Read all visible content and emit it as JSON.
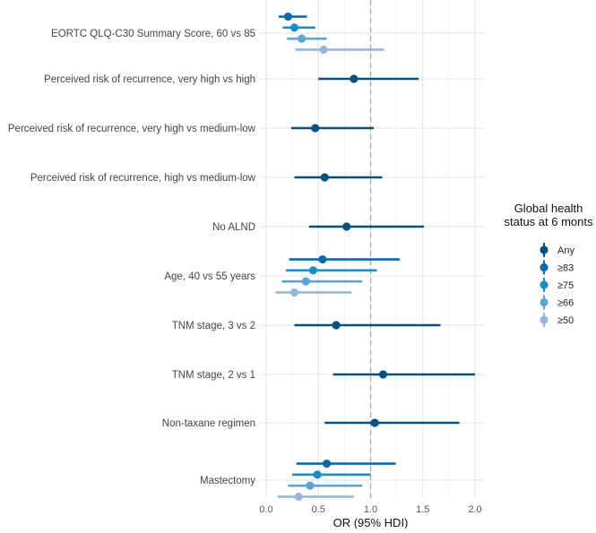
{
  "chart_data": {
    "type": "forest",
    "xlabel": "OR (95% HDI)",
    "xlim": [
      0,
      2.05
    ],
    "xticks": [
      "0.0",
      "0.5",
      "1.0",
      "1.5",
      "2.0"
    ],
    "xtick_values": [
      0,
      0.5,
      1,
      1.5,
      2
    ],
    "reference_line": 1.0,
    "grid": true,
    "legend": {
      "title_lines": [
        "Global health",
        "status at 6 monts"
      ],
      "placement": "right",
      "entries": [
        {
          "name": "Any",
          "color": "#08517f"
        },
        {
          "name": "≥83",
          "color": "#0a6aa8"
        },
        {
          "name": "≥75",
          "color": "#1b8cc6"
        },
        {
          "name": "≥66",
          "color": "#5da4d1"
        },
        {
          "name": "≥50",
          "color": "#96b7da"
        }
      ]
    },
    "rows": [
      {
        "label": "EORTC QLQ-C30 Summary Score, 60 vs 85",
        "estimates": [
          {
            "group": "≥83",
            "or": 0.21,
            "lo": 0.12,
            "hi": 0.39
          },
          {
            "group": "≥75",
            "or": 0.27,
            "lo": 0.16,
            "hi": 0.47
          },
          {
            "group": "≥66",
            "or": 0.34,
            "lo": 0.2,
            "hi": 0.58
          },
          {
            "group": "≥50",
            "or": 0.55,
            "lo": 0.28,
            "hi": 1.13
          }
        ]
      },
      {
        "label": "Perceived risk of recurrence, very high vs high",
        "estimates": [
          {
            "group": "Any",
            "or": 0.84,
            "lo": 0.5,
            "hi": 1.46
          }
        ]
      },
      {
        "label": "Perceived risk of recurrence, very high vs medium-low",
        "estimates": [
          {
            "group": "Any",
            "or": 0.47,
            "lo": 0.24,
            "hi": 1.03
          }
        ]
      },
      {
        "label": "Perceived risk of recurrence, high vs medium-low",
        "estimates": [
          {
            "group": "Any",
            "or": 0.56,
            "lo": 0.27,
            "hi": 1.11
          }
        ]
      },
      {
        "label": "No ALND",
        "estimates": [
          {
            "group": "Any",
            "or": 0.77,
            "lo": 0.41,
            "hi": 1.51
          }
        ]
      },
      {
        "label": "Age, 40 vs 55 years",
        "estimates": [
          {
            "group": "≥83",
            "or": 0.54,
            "lo": 0.22,
            "hi": 1.28
          },
          {
            "group": "≥75",
            "or": 0.45,
            "lo": 0.19,
            "hi": 1.06
          },
          {
            "group": "≥66",
            "or": 0.38,
            "lo": 0.15,
            "hi": 0.92
          },
          {
            "group": "≥50",
            "or": 0.27,
            "lo": 0.09,
            "hi": 0.82
          }
        ]
      },
      {
        "label": "TNM stage, 3 vs 2",
        "estimates": [
          {
            "group": "Any",
            "or": 0.67,
            "lo": 0.27,
            "hi": 1.67
          }
        ]
      },
      {
        "label": "TNM stage, 2 vs 1",
        "estimates": [
          {
            "group": "Any",
            "or": 1.12,
            "lo": 0.64,
            "hi": 2.0
          }
        ]
      },
      {
        "label": "Non-taxane regimen",
        "estimates": [
          {
            "group": "Any",
            "or": 1.04,
            "lo": 0.56,
            "hi": 1.85
          }
        ]
      },
      {
        "label": "Mastectomy",
        "estimates": [
          {
            "group": "≥83",
            "or": 0.58,
            "lo": 0.29,
            "hi": 1.24
          },
          {
            "group": "≥75",
            "or": 0.49,
            "lo": 0.25,
            "hi": 1.0
          },
          {
            "group": "≥66",
            "or": 0.42,
            "lo": 0.21,
            "hi": 0.92
          },
          {
            "group": "≥50",
            "or": 0.31,
            "lo": 0.11,
            "hi": 0.84
          }
        ]
      }
    ]
  }
}
